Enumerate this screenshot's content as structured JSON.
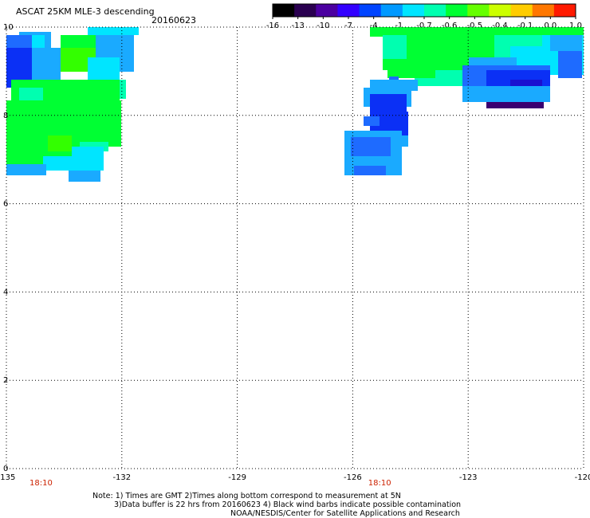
{
  "header": {
    "title": "ASCAT 25KM MLE-3 descending",
    "date": "20160623"
  },
  "colorbar": {
    "labels": [
      "-16",
      "-13",
      "-10",
      "-7",
      "-4",
      "-1",
      "-0.7",
      "-0.6",
      "-0.5",
      "-0.4",
      "-0.1",
      "0.0",
      "1.0"
    ],
    "colors": [
      "#000000",
      "#2a0050",
      "#4b00a0",
      "#3300ff",
      "#0044ff",
      "#0099ff",
      "#00e5ff",
      "#00ffb0",
      "#00ff33",
      "#66ff00",
      "#ccff00",
      "#ffcc00",
      "#ff7700",
      "#ff1a00"
    ]
  },
  "map": {
    "x_ticks": [
      "-135",
      "-132",
      "-129",
      "-126",
      "-123",
      "-120"
    ],
    "y_ticks": [
      "0",
      "2",
      "4",
      "6",
      "8",
      "10"
    ],
    "time_labels": [
      {
        "text": "18:10",
        "lon": -134.1
      },
      {
        "text": "18:10",
        "lon": -125.3
      }
    ],
    "grid": "dotted"
  },
  "notes": {
    "line1": "Note: 1) Times are GMT 2)Times along bottom correspond to measurement at 5N",
    "line2": "3)Data buffer is 22 hrs from 20160623 4) Black wind barbs indicate possible contamination",
    "line3": "NOAA/NESDIS/Center for Satellite Applications and Research"
  }
}
